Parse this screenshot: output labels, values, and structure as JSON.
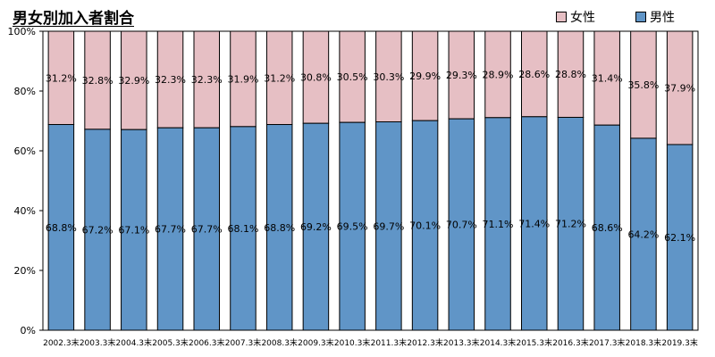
{
  "chart_data": {
    "type": "bar",
    "stacked": true,
    "percent": true,
    "title": "男女別加入者割合",
    "categories": [
      "2002.3末",
      "2003.3末",
      "2004.3末",
      "2005.3末",
      "2006.3末",
      "2007.3末",
      "2008.3末",
      "2009.3末",
      "2010.3末",
      "2011.3末",
      "2012.3末",
      "2013.3末",
      "2014.3末",
      "2015.3末",
      "2016.3末",
      "2017.3末",
      "2018.3末",
      "2019.3末"
    ],
    "series": [
      {
        "name": "男性",
        "color": "#6095c7",
        "values": [
          68.8,
          67.2,
          67.1,
          67.7,
          67.7,
          68.1,
          68.8,
          69.2,
          69.5,
          69.7,
          70.1,
          70.7,
          71.1,
          71.4,
          71.2,
          68.6,
          64.2,
          62.1
        ],
        "labels": [
          "68.8%",
          "67.2%",
          "67.1%",
          "67.7%",
          "67.7%",
          "68.1%",
          "68.8%",
          "69.2%",
          "69.5%",
          "69.7%",
          "70.1%",
          "70.7%",
          "71.1%",
          "71.4%",
          "71.2%",
          "68.6%",
          "64.2%",
          "62.1%"
        ]
      },
      {
        "name": "女性",
        "color": "#e6bfc4",
        "values": [
          31.2,
          32.8,
          32.9,
          32.3,
          32.3,
          31.9,
          31.2,
          30.8,
          30.5,
          30.3,
          29.9,
          29.3,
          28.9,
          28.6,
          28.8,
          31.4,
          35.8,
          37.9
        ],
        "labels": [
          "31.2%",
          "32.8%",
          "32.9%",
          "32.3%",
          "32.3%",
          "31.9%",
          "31.2%",
          "30.8%",
          "30.5%",
          "30.3%",
          "29.9%",
          "29.3%",
          "28.9%",
          "28.6%",
          "28.8%",
          "31.4%",
          "35.8%",
          "37.9%"
        ]
      }
    ],
    "yticks": [
      "0%",
      "20%",
      "40%",
      "60%",
      "80%",
      "100%"
    ],
    "ylim": [
      0,
      100
    ],
    "legend": {
      "position": "top-right",
      "order": [
        "女性",
        "男性"
      ]
    }
  }
}
